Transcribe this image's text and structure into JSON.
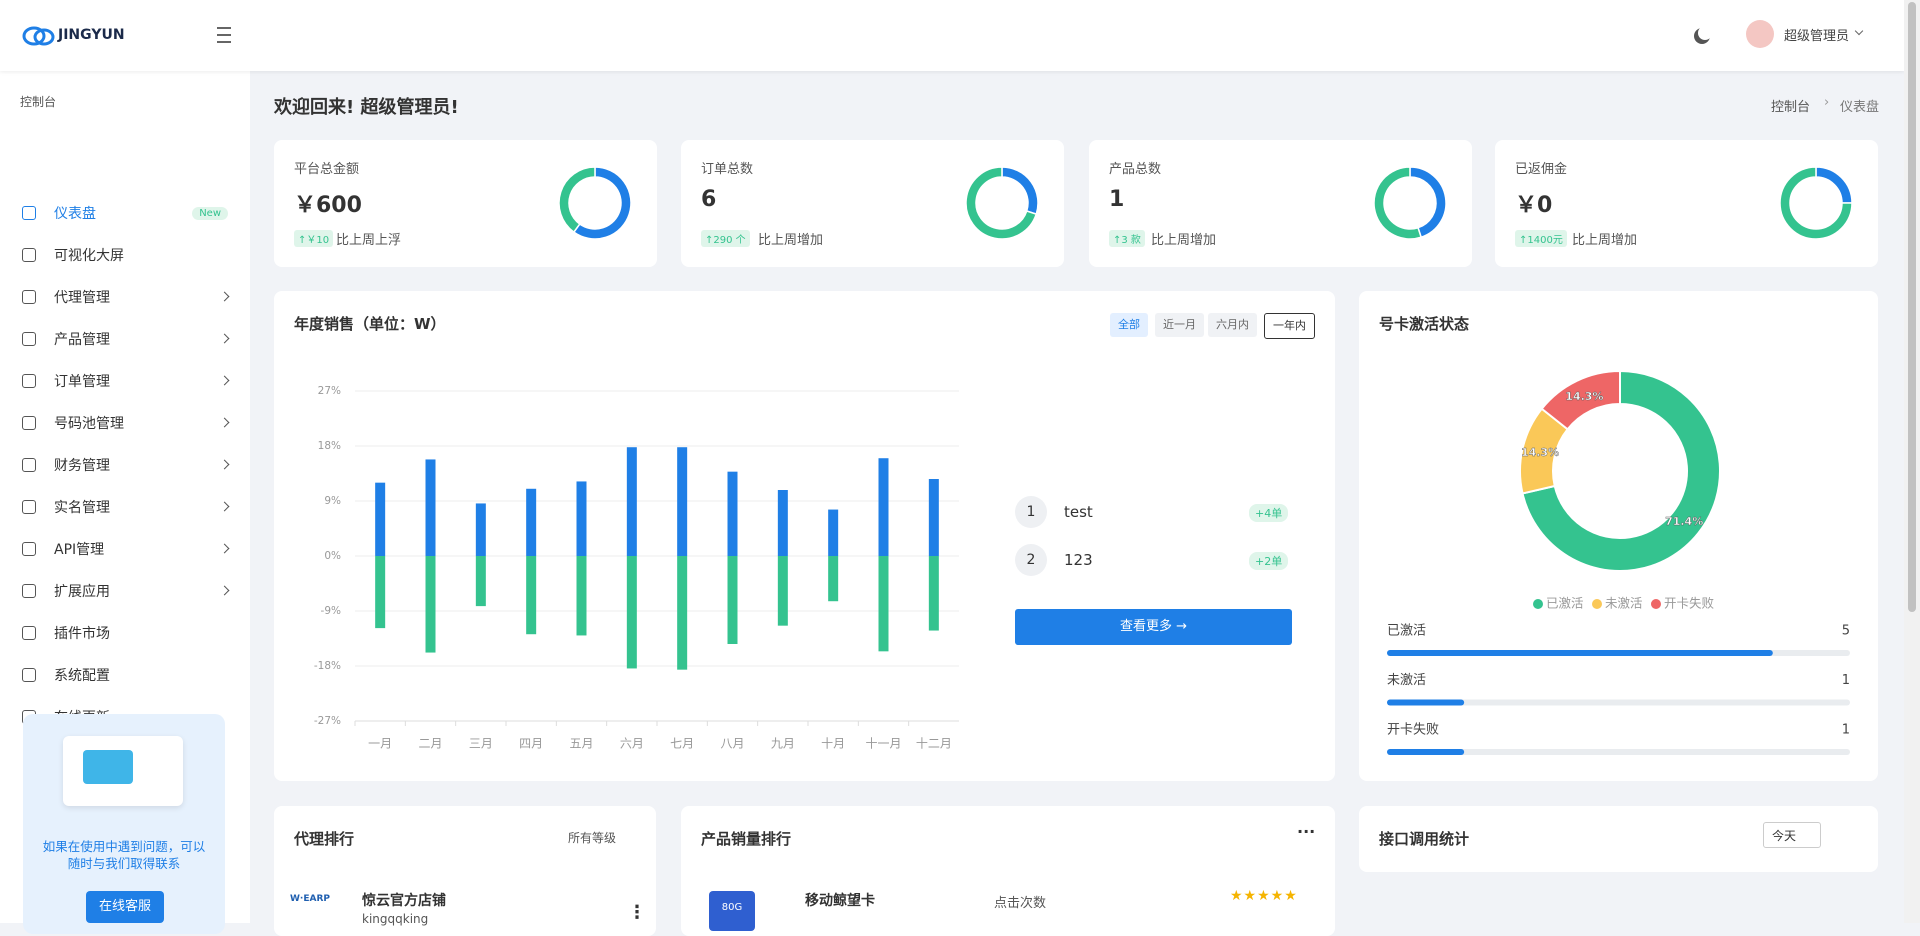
{
  "header": {
    "logo": "JINGYUN",
    "user": "超级管理员"
  },
  "sidebar": {
    "section": "控制台",
    "items": [
      {
        "label": "仪表盘",
        "badge": "New",
        "active": true
      },
      {
        "label": "可视化大屏"
      },
      {
        "label": "代理管理",
        "submenu": true
      },
      {
        "label": "产品管理",
        "submenu": true
      },
      {
        "label": "订单管理",
        "submenu": true
      },
      {
        "label": "号码池管理",
        "submenu": true
      },
      {
        "label": "财务管理",
        "submenu": true
      },
      {
        "label": "实名管理",
        "submenu": true
      },
      {
        "label": "API管理",
        "submenu": true
      },
      {
        "label": "扩展应用",
        "submenu": true
      },
      {
        "label": "插件市场"
      },
      {
        "label": "系统配置"
      },
      {
        "label": "在线更新"
      }
    ],
    "help": {
      "text": "如果在使用中遇到问题，可以随时与我们取得联系",
      "button": "在线客服"
    }
  },
  "page": {
    "title": "欢迎回来! 超级管理员!",
    "breadcrumb": [
      "控制台",
      "仪表盘"
    ]
  },
  "stats": [
    {
      "label": "平台总金额",
      "value": "￥600",
      "change": "↑￥10",
      "note": "比上周上浮",
      "donut": [
        60,
        40
      ]
    },
    {
      "label": "订单总数",
      "value": "6",
      "change": "↑290 个",
      "note": "比上周增加",
      "donut": [
        30,
        70
      ]
    },
    {
      "label": "产品总数",
      "value": "1",
      "change": "↑3 款",
      "note": "比上周增加",
      "donut": [
        45,
        55
      ]
    },
    {
      "label": "已返佣金",
      "value": "￥0",
      "change": "↑1400元",
      "note": "比上周增加",
      "donut": [
        25,
        75
      ]
    }
  ],
  "chart_data": [
    {
      "type": "bar",
      "title": "年度销售（单位：W）",
      "tabs": [
        "全部",
        "近一月",
        "六月内",
        "一年内"
      ],
      "categories": [
        "一月",
        "二月",
        "三月",
        "四月",
        "五月",
        "六月",
        "七月",
        "八月",
        "九月",
        "十月",
        "十一月",
        "十二月"
      ],
      "series": [
        {
          "color": "#1f7fe6",
          "values": [
            12,
            15.8,
            8.6,
            11,
            12.2,
            17.8,
            17.8,
            13.8,
            10.8,
            7.6,
            16,
            12.6
          ]
        },
        {
          "color": "#34c38f",
          "values": [
            -11.8,
            -15.8,
            -8.2,
            -12.8,
            -13,
            -18.4,
            -18.6,
            -14.4,
            -11.4,
            -7.4,
            -15.6,
            -12.2
          ]
        }
      ],
      "ylim": [
        -27,
        27
      ],
      "yticks": [
        {
          "value": 27,
          "label": "27%"
        },
        {
          "value": 18,
          "label": "18%"
        },
        {
          "value": 9,
          "label": "9%"
        },
        {
          "value": 0,
          "label": "0%"
        },
        {
          "value": -9,
          "label": "-9%"
        },
        {
          "value": -18,
          "label": "-18%"
        },
        {
          "value": -27,
          "label": "-27%"
        }
      ],
      "grid": true,
      "ranking": [
        {
          "rank": "1",
          "name": "test",
          "change": "+4单"
        },
        {
          "rank": "2",
          "name": "123",
          "change": "+2单"
        }
      ],
      "button": "查看更多 →"
    },
    {
      "type": "pie",
      "title": "号卡激活状态",
      "categories": [
        "已激活",
        "未激活",
        "开卡失败"
      ],
      "values": [
        71.4,
        14.3,
        14.3
      ],
      "value_labels": [
        "71.4%",
        "14.3%",
        "14.3%"
      ],
      "colors": [
        "#34c38f",
        "#fac858",
        "#ee6666"
      ],
      "status": {
        "counts": [
          5,
          1,
          1
        ],
        "xlim": [
          0,
          6
        ]
      }
    }
  ],
  "panels": {
    "agents": {
      "title": "代理排行",
      "filter": "所有等级",
      "rows": [
        {
          "name": "惊云官方店铺",
          "sub": "kingqqking"
        }
      ]
    },
    "products": {
      "title": "产品销量排行",
      "rows": [
        {
          "name": "移动鲸望卡",
          "metric": "点击次数",
          "tag": "80G"
        }
      ]
    },
    "api": {
      "title": "接口调用统计",
      "filter": "今天"
    }
  }
}
